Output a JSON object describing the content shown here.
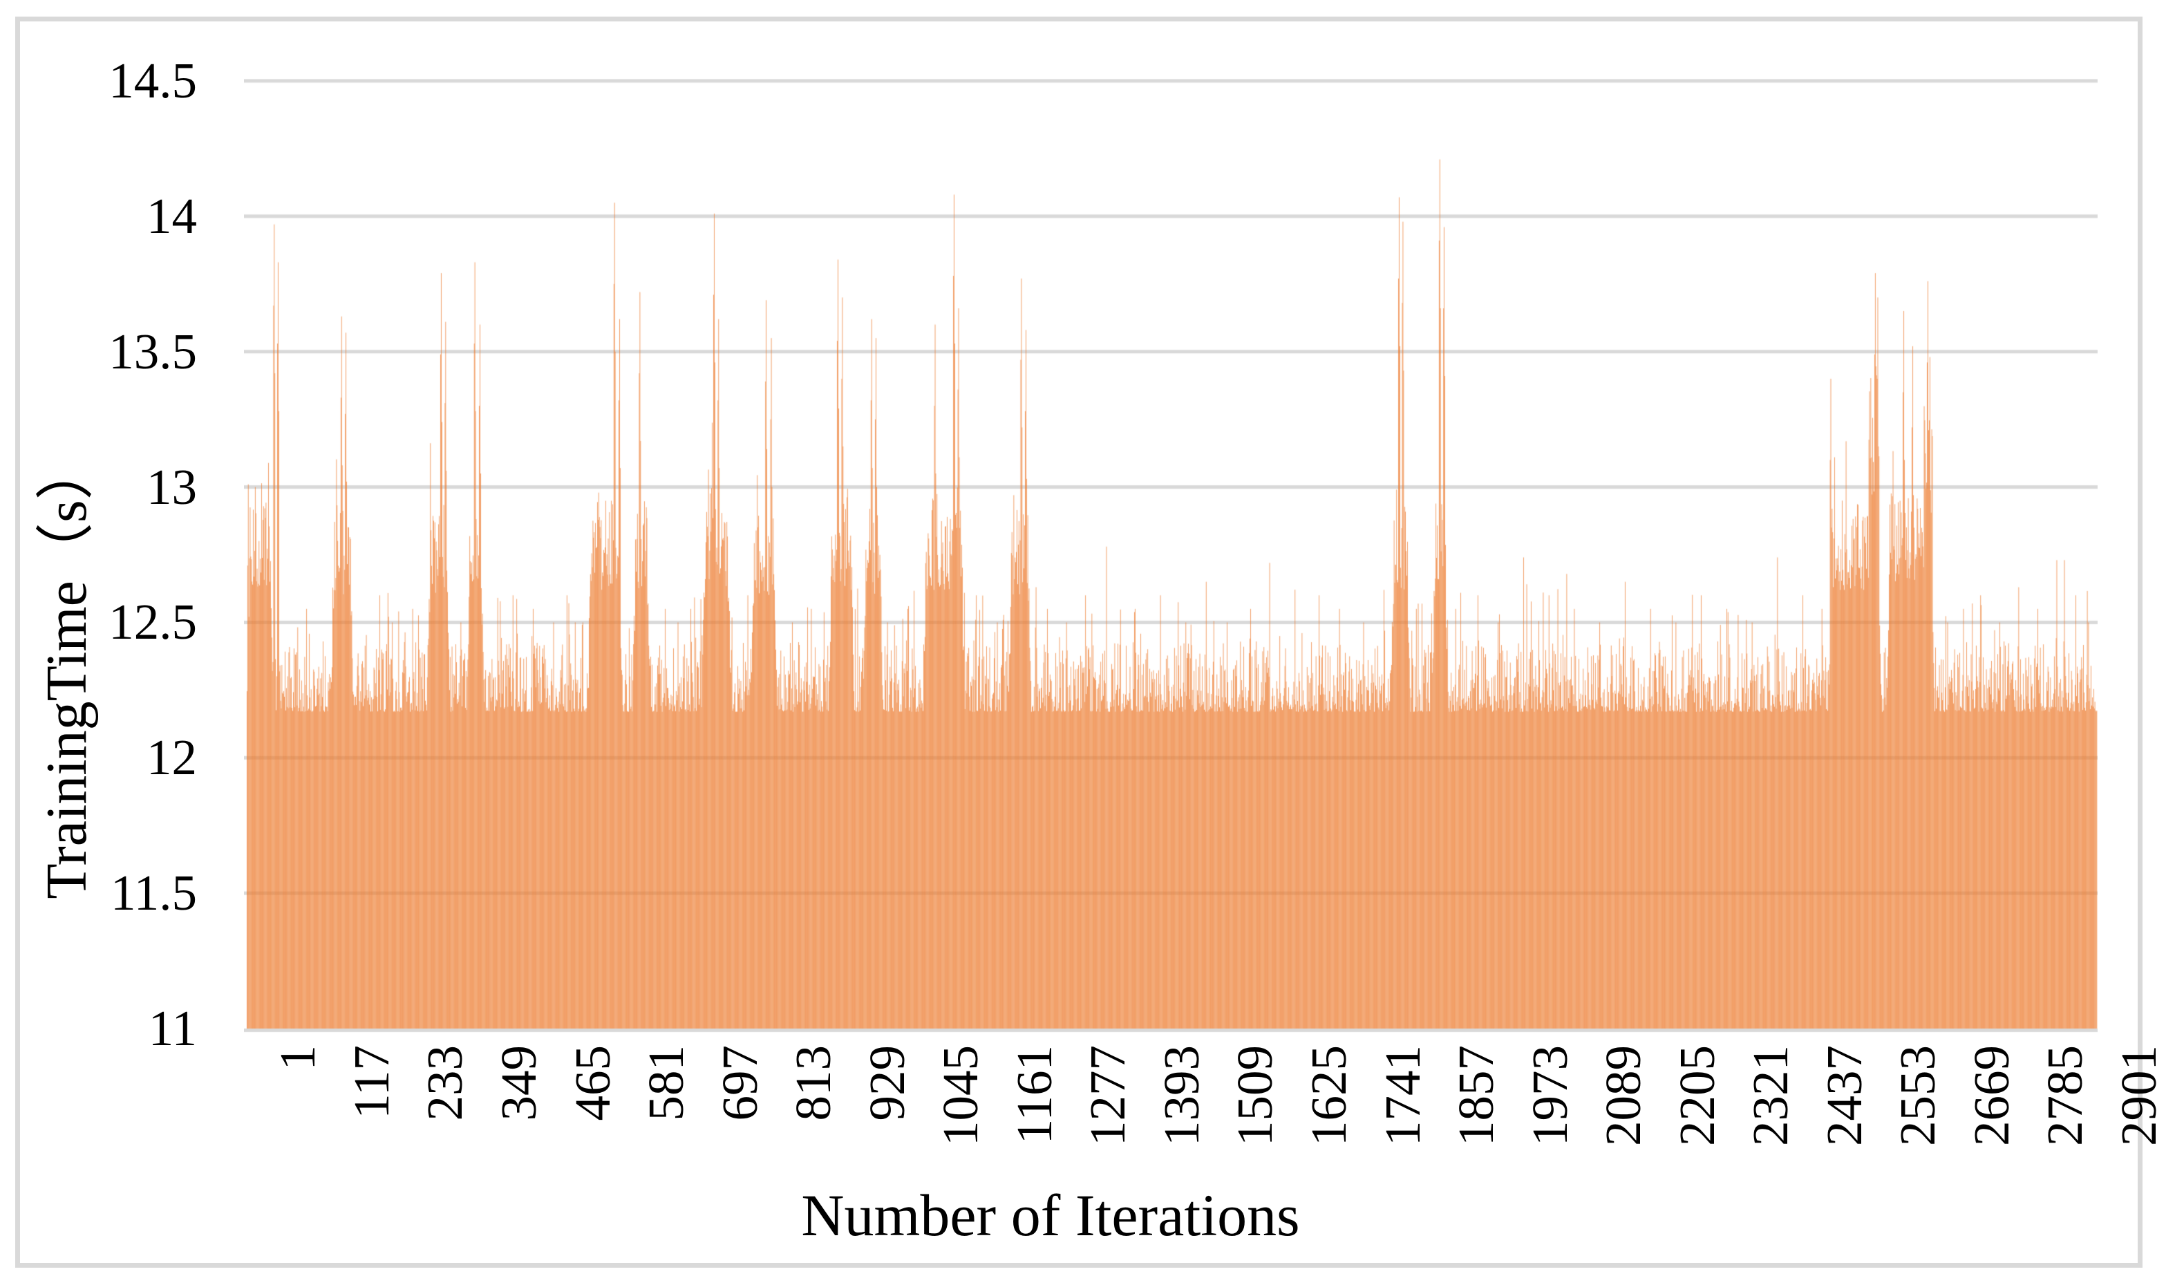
{
  "figure": {
    "background_color": "#ffffff",
    "frame_color": "#d9d9d9"
  },
  "chart_data": {
    "type": "bar",
    "title": "",
    "xlabel": "Number of Iterations",
    "ylabel": "TrainingTime（s）",
    "ylim": [
      11,
      14.5
    ],
    "ytick_step": 0.5,
    "yticks": [
      {
        "value": 14.5,
        "label": "14.5"
      },
      {
        "value": 14,
        "label": "14"
      },
      {
        "value": 13.5,
        "label": "13.5"
      },
      {
        "value": 13,
        "label": "13"
      },
      {
        "value": 12.5,
        "label": "12.5"
      },
      {
        "value": 12,
        "label": "12"
      },
      {
        "value": 11.5,
        "label": "11.5"
      },
      {
        "value": 11,
        "label": "11"
      }
    ],
    "xticks": [
      1,
      117,
      233,
      349,
      465,
      581,
      697,
      813,
      929,
      1045,
      1161,
      1277,
      1393,
      1509,
      1625,
      1741,
      1857,
      1973,
      2089,
      2205,
      2321,
      2437,
      2553,
      2669,
      2785,
      2901
    ],
    "xtick_interval": 116,
    "n_points": 2915,
    "bar_color": "#ED7D31",
    "gridline_color": "#D9D9D9",
    "grid": true,
    "legend": false,
    "baseline": {
      "floor": 12.17,
      "typical_top": 12.45,
      "description": "every iteration takes at least ~12.17s; dense noise with most bars topping out between 12.2 and 12.45"
    },
    "elevated_clusters": [
      {
        "start": 1,
        "end": 42,
        "low": 12.62,
        "high": 13.02
      },
      {
        "start": 134,
        "end": 168,
        "low": 12.6,
        "high": 12.95
      },
      {
        "start": 285,
        "end": 320,
        "low": 12.6,
        "high": 12.95
      },
      {
        "start": 348,
        "end": 374,
        "low": 12.6,
        "high": 12.95
      },
      {
        "start": 539,
        "end": 592,
        "low": 12.62,
        "high": 13.0
      },
      {
        "start": 609,
        "end": 636,
        "low": 12.6,
        "high": 12.95
      },
      {
        "start": 718,
        "end": 763,
        "low": 12.62,
        "high": 13.0
      },
      {
        "start": 795,
        "end": 835,
        "low": 12.6,
        "high": 12.95
      },
      {
        "start": 918,
        "end": 957,
        "low": 12.62,
        "high": 13.0
      },
      {
        "start": 972,
        "end": 1002,
        "low": 12.6,
        "high": 12.95
      },
      {
        "start": 1067,
        "end": 1131,
        "low": 12.62,
        "high": 13.0
      },
      {
        "start": 1201,
        "end": 1236,
        "low": 12.6,
        "high": 12.95
      },
      {
        "start": 1803,
        "end": 1833,
        "low": 12.62,
        "high": 12.95
      },
      {
        "start": 1868,
        "end": 1893,
        "low": 12.6,
        "high": 12.95
      },
      {
        "start": 2493,
        "end": 2575,
        "low": 12.62,
        "high": 12.95
      },
      {
        "start": 2585,
        "end": 2659,
        "low": 12.65,
        "high": 13.0
      }
    ],
    "plateau_blocks": [
      {
        "start": 2556,
        "end": 2572,
        "low": 12.95,
        "high": 13.45
      },
      {
        "start": 2643,
        "end": 2656,
        "low": 12.9,
        "high": 13.3
      }
    ],
    "spikes": [
      [
        3,
        13.01
      ],
      [
        44,
        13.97
      ],
      [
        50,
        13.83
      ],
      [
        150,
        13.63
      ],
      [
        157,
        13.57
      ],
      [
        307,
        13.79
      ],
      [
        314,
        13.61
      ],
      [
        360,
        13.83
      ],
      [
        368,
        13.6
      ],
      [
        580,
        14.05
      ],
      [
        588,
        13.62
      ],
      [
        620,
        13.72
      ],
      [
        737,
        14.01
      ],
      [
        744,
        13.62
      ],
      [
        819,
        13.69
      ],
      [
        827,
        13.55
      ],
      [
        932,
        13.84
      ],
      [
        939,
        13.7
      ],
      [
        985,
        13.62
      ],
      [
        992,
        13.55
      ],
      [
        1085,
        13.6
      ],
      [
        1115,
        14.08
      ],
      [
        1122,
        13.66
      ],
      [
        1221,
        13.77
      ],
      [
        1228,
        13.58
      ],
      [
        1816,
        14.07
      ],
      [
        1822,
        13.98
      ],
      [
        1880,
        14.21
      ],
      [
        1887,
        13.96
      ],
      [
        2496,
        13.4
      ],
      [
        2502,
        13.11
      ],
      [
        2566,
        13.79
      ],
      [
        2570,
        13.7
      ],
      [
        2611,
        13.65
      ],
      [
        2625,
        13.52
      ],
      [
        2649,
        13.76
      ],
      [
        2652,
        13.48
      ],
      [
        2864,
        12.73
      ]
    ],
    "sprinkles": [
      [
        95,
        12.55
      ],
      [
        210,
        12.6
      ],
      [
        230,
        12.5
      ],
      [
        262,
        12.55
      ],
      [
        338,
        12.5
      ],
      [
        420,
        12.6
      ],
      [
        452,
        12.55
      ],
      [
        484,
        12.5
      ],
      [
        505,
        12.6
      ],
      [
        530,
        12.5
      ],
      [
        660,
        12.55
      ],
      [
        680,
        12.5
      ],
      [
        700,
        12.55
      ],
      [
        790,
        12.6
      ],
      [
        860,
        12.5
      ],
      [
        890,
        12.55
      ],
      [
        963,
        12.55
      ],
      [
        1010,
        12.5
      ],
      [
        1042,
        12.55
      ],
      [
        1150,
        12.6
      ],
      [
        1183,
        12.5
      ],
      [
        1262,
        12.55
      ],
      [
        1292,
        12.5
      ],
      [
        1322,
        12.6
      ],
      [
        1355,
        12.78
      ],
      [
        1400,
        12.55
      ],
      [
        1440,
        12.6
      ],
      [
        1480,
        12.5
      ],
      [
        1512,
        12.65
      ],
      [
        1545,
        12.5
      ],
      [
        1582,
        12.55
      ],
      [
        1612,
        12.72
      ],
      [
        1652,
        12.5
      ],
      [
        1690,
        12.6
      ],
      [
        1722,
        12.55
      ],
      [
        1760,
        12.5
      ],
      [
        1792,
        12.62
      ],
      [
        1843,
        12.55
      ],
      [
        1905,
        12.55
      ],
      [
        1940,
        12.6
      ],
      [
        1972,
        12.5
      ],
      [
        2012,
        12.74
      ],
      [
        2052,
        12.6
      ],
      [
        2092,
        12.55
      ],
      [
        2132,
        12.5
      ],
      [
        2172,
        12.65
      ],
      [
        2212,
        12.55
      ],
      [
        2252,
        12.5
      ],
      [
        2292,
        12.6
      ],
      [
        2332,
        12.55
      ],
      [
        2372,
        12.5
      ],
      [
        2412,
        12.74
      ],
      [
        2452,
        12.6
      ],
      [
        2482,
        12.55
      ],
      [
        2680,
        12.5
      ],
      [
        2705,
        12.55
      ],
      [
        2732,
        12.6
      ],
      [
        2762,
        12.5
      ],
      [
        2792,
        12.63
      ],
      [
        2822,
        12.55
      ],
      [
        2852,
        12.73
      ],
      [
        2882,
        12.6
      ],
      [
        2902,
        12.5
      ]
    ],
    "seed": 7
  }
}
